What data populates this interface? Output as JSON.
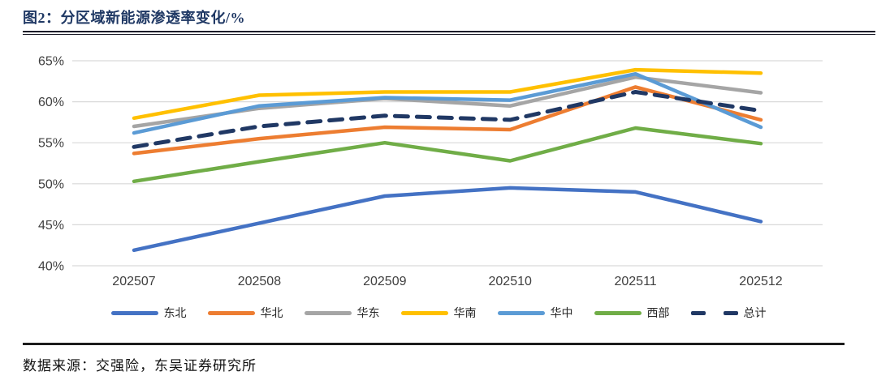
{
  "header": {
    "title": "图2：分区域新能源渗透率变化/%"
  },
  "footer": {
    "source": "数据来源：交强险，东吴证券研究所"
  },
  "chart_data": {
    "type": "line",
    "title": "图2：分区域新能源渗透率变化/%",
    "categories": [
      "202507",
      "202508",
      "202509",
      "202510",
      "202511",
      "202512"
    ],
    "series": [
      {
        "name": "东北",
        "color": "#4472C4",
        "dashed": false,
        "values": [
          41.9,
          45.2,
          48.5,
          49.5,
          49.0,
          45.4
        ]
      },
      {
        "name": "华北",
        "color": "#ED7D31",
        "dashed": false,
        "values": [
          53.7,
          55.5,
          56.9,
          56.6,
          61.8,
          57.8
        ]
      },
      {
        "name": "华东",
        "color": "#A5A5A5",
        "dashed": false,
        "values": [
          57.0,
          59.2,
          60.4,
          59.5,
          63.0,
          61.1
        ]
      },
      {
        "name": "华南",
        "color": "#FFC000",
        "dashed": false,
        "values": [
          58.0,
          60.8,
          61.2,
          61.2,
          63.9,
          63.5
        ]
      },
      {
        "name": "华中",
        "color": "#5B9BD5",
        "dashed": false,
        "values": [
          56.2,
          59.5,
          60.5,
          60.2,
          63.4,
          56.9
        ]
      },
      {
        "name": "西部",
        "color": "#70AD47",
        "dashed": false,
        "values": [
          50.3,
          52.7,
          55.0,
          52.8,
          56.8,
          54.9
        ]
      },
      {
        "name": "总计",
        "color": "#203864",
        "dashed": true,
        "values": [
          54.5,
          57.0,
          58.3,
          57.8,
          61.2,
          58.9
        ]
      }
    ],
    "ylim": [
      40,
      65
    ],
    "yticks": [
      65,
      60,
      55,
      50,
      45,
      40
    ],
    "ytick_suffix": "%",
    "grid": true,
    "gridline_color": "#D9D9D9",
    "axis_label_color": "#404040",
    "legend_position": "bottom"
  }
}
